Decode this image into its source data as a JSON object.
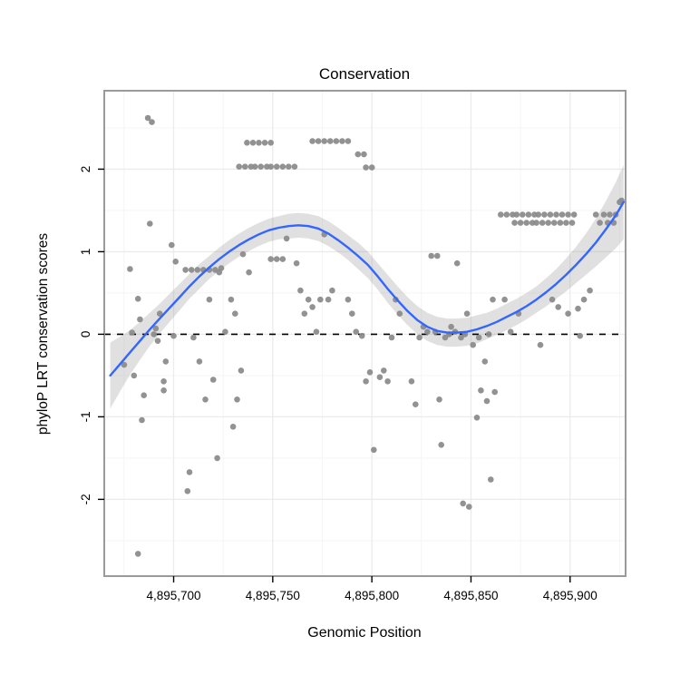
{
  "chart_data": {
    "type": "scatter",
    "title": "Conservation",
    "xlabel": "Genomic Position",
    "ylabel": "phyloP LRT conservation scores",
    "xlim": [
      4895665,
      4895928
    ],
    "ylim": [
      -2.93,
      2.95
    ],
    "grid": true,
    "legend": "none",
    "reference_line_y": 0,
    "x_ticks": [
      {
        "value": 4895700,
        "label": "4,895,700"
      },
      {
        "value": 4895750,
        "label": "4,895,750"
      },
      {
        "value": 4895800,
        "label": "4,895,800"
      },
      {
        "value": 4895850,
        "label": "4,895,850"
      },
      {
        "value": 4895900,
        "label": "4,895,900"
      }
    ],
    "y_ticks": [
      {
        "value": 2,
        "label": "2"
      },
      {
        "value": 1,
        "label": "1"
      },
      {
        "value": 0,
        "label": "0"
      },
      {
        "value": -1,
        "label": "-1"
      },
      {
        "value": -2,
        "label": "-2"
      }
    ],
    "x_minor_ticks": [
      4895675,
      4895725,
      4895775,
      4895825,
      4895875,
      4895925
    ],
    "y_minor_ticks": [
      -2.5,
      -1.5,
      -0.5,
      0.5,
      1.5,
      2.5
    ],
    "colors": {
      "point": "#8c8c8c",
      "smooth": "#3366FF",
      "band": "#999999",
      "band_opacity": 0.3,
      "grid_major": "#ebebeb",
      "grid_minor": "#f5f5f5",
      "panel_border": "#9a9a9a",
      "panel_bg": "#ffffff",
      "reference_line": "#000000"
    },
    "points": [
      [
        4895687,
        2.62
      ],
      [
        4895689,
        2.57
      ],
      [
        4895678,
        0.79
      ],
      [
        4895688,
        1.34
      ],
      [
        4895682,
        0.43
      ],
      [
        4895683,
        0.18
      ],
      [
        4895679,
        0.02
      ],
      [
        4895675,
        -0.37
      ],
      [
        4895680,
        -0.5
      ],
      [
        4895685,
        -0.74
      ],
      [
        4895684,
        -1.04
      ],
      [
        4895682,
        -2.66
      ],
      [
        4895690,
        0.0
      ],
      [
        4895691,
        0.07
      ],
      [
        4895693,
        0.25
      ],
      [
        4895692,
        -0.08
      ],
      [
        4895695,
        -0.57
      ],
      [
        4895696,
        -0.33
      ],
      [
        4895699,
        1.08
      ],
      [
        4895701,
        0.88
      ],
      [
        4895695,
        -0.68
      ],
      [
        4895700,
        -0.02
      ],
      [
        4895706,
        0.78
      ],
      [
        4895709,
        0.78
      ],
      [
        4895712,
        0.78
      ],
      [
        4895715,
        0.78
      ],
      [
        4895718,
        0.78
      ],
      [
        4895721,
        0.78
      ],
      [
        4895724,
        0.8
      ],
      [
        4895707,
        -1.9
      ],
      [
        4895708,
        -1.67
      ],
      [
        4895710,
        -0.04
      ],
      [
        4895713,
        -0.33
      ],
      [
        4895716,
        -0.79
      ],
      [
        4895718,
        0.42
      ],
      [
        4895720,
        -0.55
      ],
      [
        4895723,
        0.75
      ],
      [
        4895726,
        0.03
      ],
      [
        4895722,
        -1.5
      ],
      [
        4895729,
        0.42
      ],
      [
        4895731,
        0.25
      ],
      [
        4895732,
        -0.79
      ],
      [
        4895734,
        -0.44
      ],
      [
        4895735,
        0.97
      ],
      [
        4895738,
        0.75
      ],
      [
        4895730,
        -1.12
      ],
      [
        4895733,
        2.03
      ],
      [
        4895736,
        2.03
      ],
      [
        4895739,
        2.03
      ],
      [
        4895741,
        2.03
      ],
      [
        4895744,
        2.03
      ],
      [
        4895747,
        2.03
      ],
      [
        4895749,
        2.03
      ],
      [
        4895752,
        2.03
      ],
      [
        4895755,
        2.03
      ],
      [
        4895758,
        2.03
      ],
      [
        4895761,
        2.03
      ],
      [
        4895737,
        2.32
      ],
      [
        4895740,
        2.32
      ],
      [
        4895743,
        2.32
      ],
      [
        4895746,
        2.32
      ],
      [
        4895749,
        2.32
      ],
      [
        4895749,
        0.91
      ],
      [
        4895752,
        0.91
      ],
      [
        4895755,
        0.91
      ],
      [
        4895757,
        1.16
      ],
      [
        4895762,
        0.86
      ],
      [
        4895764,
        0.53
      ],
      [
        4895766,
        0.25
      ],
      [
        4895768,
        0.42
      ],
      [
        4895770,
        0.33
      ],
      [
        4895772,
        0.03
      ],
      [
        4895774,
        0.42
      ],
      [
        4895776,
        1.21
      ],
      [
        4895778,
        0.42
      ],
      [
        4895780,
        0.53
      ],
      [
        4895770,
        2.34
      ],
      [
        4895773,
        2.34
      ],
      [
        4895776,
        2.34
      ],
      [
        4895779,
        2.34
      ],
      [
        4895782,
        2.34
      ],
      [
        4895785,
        2.34
      ],
      [
        4895788,
        2.34
      ],
      [
        4895793,
        2.18
      ],
      [
        4895796,
        2.18
      ],
      [
        4895797,
        2.02
      ],
      [
        4895800,
        2.02
      ],
      [
        4895788,
        0.42
      ],
      [
        4895790,
        0.25
      ],
      [
        4895792,
        0.03
      ],
      [
        4895795,
        -0.02
      ],
      [
        4895797,
        -0.57
      ],
      [
        4895799,
        -0.46
      ],
      [
        4895801,
        -1.4
      ],
      [
        4895804,
        -0.52
      ],
      [
        4895806,
        -0.44
      ],
      [
        4895808,
        -0.57
      ],
      [
        4895810,
        -0.04
      ],
      [
        4895812,
        0.42
      ],
      [
        4895814,
        0.25
      ],
      [
        4895820,
        -0.57
      ],
      [
        4895822,
        -0.85
      ],
      [
        4895824,
        -0.04
      ],
      [
        4895826,
        0.09
      ],
      [
        4895828,
        0.03
      ],
      [
        4895830,
        0.95
      ],
      [
        4895833,
        0.95
      ],
      [
        4895832,
        0.03
      ],
      [
        4895834,
        -0.79
      ],
      [
        4895835,
        -1.34
      ],
      [
        4895837,
        -0.04
      ],
      [
        4895839,
        0.0
      ],
      [
        4895840,
        0.09
      ],
      [
        4895842,
        0.03
      ],
      [
        4895843,
        0.86
      ],
      [
        4895845,
        -0.04
      ],
      [
        4895846,
        -2.05
      ],
      [
        4895849,
        -2.09
      ],
      [
        4895847,
        0.0
      ],
      [
        4895848,
        0.25
      ],
      [
        4895851,
        -0.13
      ],
      [
        4895853,
        -1.01
      ],
      [
        4895854,
        -0.04
      ],
      [
        4895855,
        -0.68
      ],
      [
        4895857,
        -0.33
      ],
      [
        4895858,
        -0.81
      ],
      [
        4895859,
        0.0
      ],
      [
        4895860,
        -1.76
      ],
      [
        4895861,
        0.42
      ],
      [
        4895862,
        -0.7
      ],
      [
        4895865,
        1.45
      ],
      [
        4895868,
        1.45
      ],
      [
        4895871,
        1.45
      ],
      [
        4895873,
        1.45
      ],
      [
        4895876,
        1.45
      ],
      [
        4895879,
        1.45
      ],
      [
        4895882,
        1.45
      ],
      [
        4895884,
        1.45
      ],
      [
        4895887,
        1.45
      ],
      [
        4895890,
        1.45
      ],
      [
        4895893,
        1.45
      ],
      [
        4895896,
        1.45
      ],
      [
        4895899,
        1.45
      ],
      [
        4895902,
        1.45
      ],
      [
        4895872,
        1.35
      ],
      [
        4895875,
        1.35
      ],
      [
        4895878,
        1.35
      ],
      [
        4895881,
        1.35
      ],
      [
        4895883,
        1.35
      ],
      [
        4895886,
        1.35
      ],
      [
        4895889,
        1.35
      ],
      [
        4895892,
        1.35
      ],
      [
        4895895,
        1.35
      ],
      [
        4895898,
        1.35
      ],
      [
        4895901,
        1.35
      ],
      [
        4895913,
        1.45
      ],
      [
        4895917,
        1.45
      ],
      [
        4895920,
        1.45
      ],
      [
        4895923,
        1.45
      ],
      [
        4895915,
        1.35
      ],
      [
        4895919,
        1.35
      ],
      [
        4895922,
        1.35
      ],
      [
        4895925,
        1.6
      ],
      [
        4895926,
        1.62
      ],
      [
        4895867,
        0.42
      ],
      [
        4895870,
        0.03
      ],
      [
        4895874,
        0.25
      ],
      [
        4895885,
        -0.13
      ],
      [
        4895891,
        0.42
      ],
      [
        4895894,
        0.33
      ],
      [
        4895899,
        0.25
      ],
      [
        4895904,
        0.31
      ],
      [
        4895907,
        0.42
      ],
      [
        4895910,
        0.53
      ],
      [
        4895905,
        -0.02
      ]
    ],
    "smooth": {
      "x": [
        4895668,
        4895673,
        4895678,
        4895683,
        4895688,
        4895693,
        4895698,
        4895703,
        4895708,
        4895713,
        4895718,
        4895723,
        4895728,
        4895733,
        4895738,
        4895743,
        4895748,
        4895753,
        4895758,
        4895763,
        4895768,
        4895773,
        4895778,
        4895783,
        4895788,
        4895793,
        4895798,
        4895803,
        4895808,
        4895813,
        4895818,
        4895823,
        4895828,
        4895833,
        4895838,
        4895843,
        4895848,
        4895853,
        4895858,
        4895863,
        4895868,
        4895873,
        4895878,
        4895883,
        4895888,
        4895893,
        4895898,
        4895903,
        4895908,
        4895913,
        4895918,
        4895923,
        4895927
      ],
      "y": [
        -0.5,
        -0.36,
        -0.22,
        -0.08,
        0.06,
        0.19,
        0.32,
        0.45,
        0.58,
        0.7,
        0.81,
        0.91,
        1.0,
        1.08,
        1.15,
        1.21,
        1.26,
        1.29,
        1.31,
        1.32,
        1.31,
        1.28,
        1.22,
        1.14,
        1.05,
        0.95,
        0.84,
        0.7,
        0.55,
        0.41,
        0.28,
        0.17,
        0.09,
        0.04,
        0.02,
        0.02,
        0.03,
        0.06,
        0.1,
        0.15,
        0.21,
        0.27,
        0.34,
        0.42,
        0.51,
        0.61,
        0.72,
        0.84,
        0.97,
        1.11,
        1.27,
        1.44,
        1.6
      ],
      "ci_half_width": [
        0.4,
        0.33,
        0.27,
        0.23,
        0.2,
        0.18,
        0.17,
        0.16,
        0.15,
        0.15,
        0.14,
        0.14,
        0.14,
        0.14,
        0.14,
        0.14,
        0.14,
        0.14,
        0.15,
        0.15,
        0.15,
        0.15,
        0.15,
        0.15,
        0.15,
        0.16,
        0.16,
        0.16,
        0.17,
        0.17,
        0.17,
        0.17,
        0.17,
        0.17,
        0.17,
        0.17,
        0.17,
        0.17,
        0.16,
        0.16,
        0.16,
        0.16,
        0.16,
        0.16,
        0.17,
        0.18,
        0.2,
        0.22,
        0.25,
        0.29,
        0.34,
        0.4,
        0.45
      ]
    }
  }
}
